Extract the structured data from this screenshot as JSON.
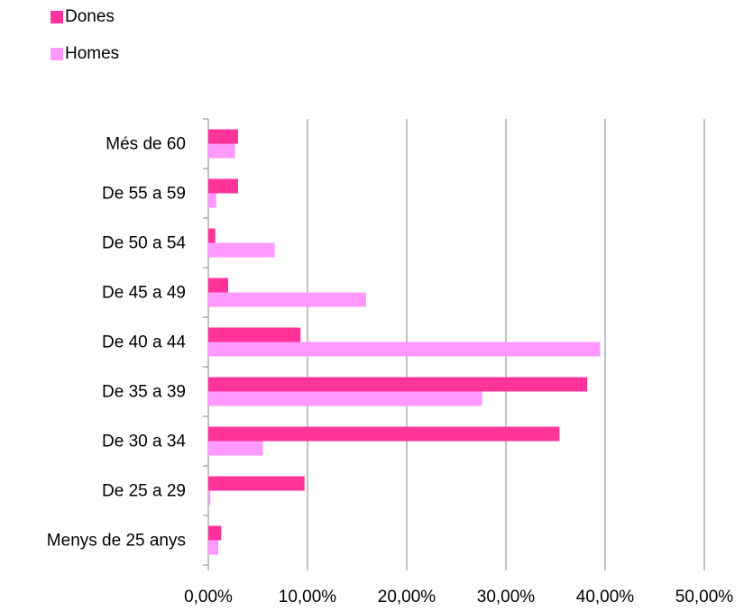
{
  "chart_data": {
    "type": "bar",
    "orientation": "horizontal",
    "categories": [
      "Més de 60",
      "De 55 a 59",
      "De 50 a 54",
      "De 45 a 49",
      "De 40 a 44",
      "De 35 a 39",
      "De 30 a 34",
      "De 25 a 29",
      "Menys de 25 anys"
    ],
    "series": [
      {
        "name": "Dones",
        "color": "#ff3399",
        "values": [
          3.0,
          3.0,
          0.7,
          2.0,
          9.3,
          38.2,
          35.4,
          9.7,
          1.3
        ]
      },
      {
        "name": "Homes",
        "color": "#ff99ff",
        "values": [
          2.7,
          0.8,
          6.7,
          15.9,
          39.5,
          27.6,
          5.5,
          0.2,
          1.0
        ]
      }
    ],
    "x_ticks": [
      "0,00%",
      "10,00%",
      "20,00%",
      "30,00%",
      "40,00%",
      "50,00%"
    ],
    "xlim": [
      0,
      50
    ],
    "grid": "vertical major gridlines",
    "legend_position": "top-left"
  }
}
